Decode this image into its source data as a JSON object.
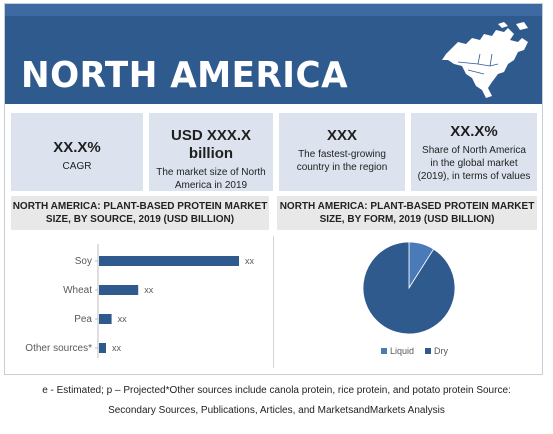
{
  "header": {
    "title": "NORTH AMERICA"
  },
  "kpis": [
    {
      "value": "XX.X%",
      "label": "CAGR"
    },
    {
      "value": "USD XXX.X billion",
      "label": "The market size of North America in 2019"
    },
    {
      "value": "XXX",
      "label": "The fastest-growing country in the region"
    },
    {
      "value": "XX.X%",
      "label": "Share of North America in the global market (2019), in terms of values"
    }
  ],
  "colors": {
    "banner": "#2f5a8e",
    "accent": "#2f5a8e",
    "kpi_bg": "#dce3ee",
    "bar": "#2f5a8e",
    "liquid": "#4a7ab8",
    "dry": "#2f5a8e"
  },
  "chart_data": [
    {
      "type": "bar",
      "orientation": "horizontal",
      "title": "NORTH AMERICA: PLANT-BASED PROTEIN MARKET SIZE, BY SOURCE, 2019 (USD BILLION)",
      "categories": [
        "Soy",
        "Wheat",
        "Pea",
        "Other sources*"
      ],
      "values": [
        100,
        28,
        9,
        5
      ],
      "value_labels": [
        "xx",
        "xx",
        "xx",
        "xx"
      ],
      "xlabel": "",
      "ylabel": "",
      "grid": false
    },
    {
      "type": "pie",
      "title": "NORTH AMERICA: PLANT-BASED PROTEIN MARKET SIZE, BY FORM, 2019 (USD BILLION)",
      "labels": [
        "Liquid",
        "Dry"
      ],
      "values": [
        9,
        91
      ],
      "legend": "bottom"
    }
  ],
  "footnote": {
    "line1": "e - Estimated; p – Projected*Other sources include canola protein, rice protein, and potato protein Source:",
    "line2": "Secondary Sources, Publications, Articles, and MarketsandMarkets Analysis"
  }
}
